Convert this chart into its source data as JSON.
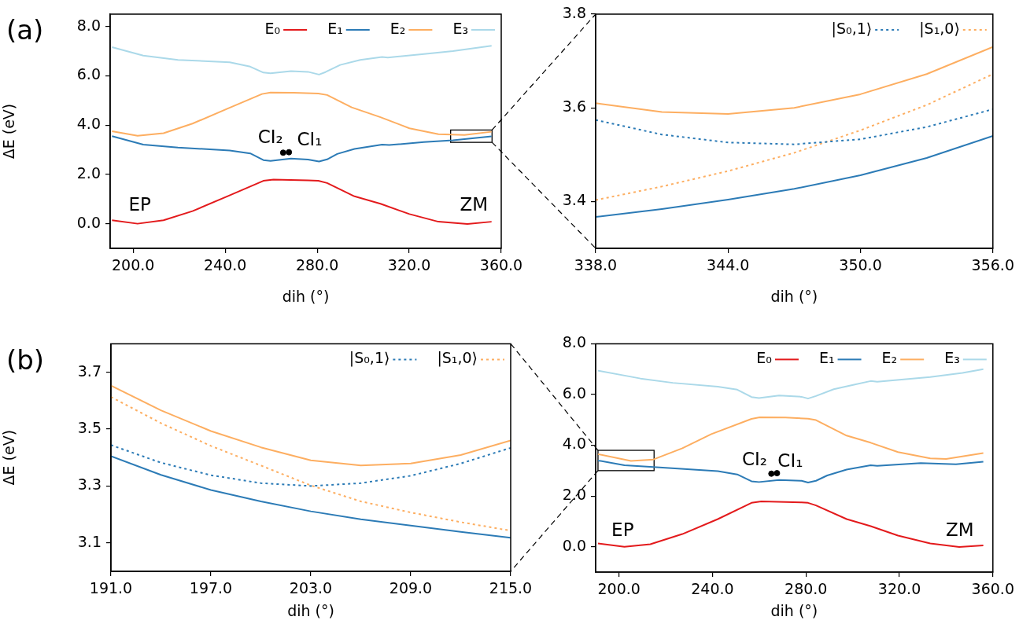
{
  "chart_data": [
    {
      "type": "line",
      "xlabel": "dih (°)",
      "ylabel": "ΔE (eV)",
      "xlim": [
        190,
        360
      ],
      "ylim": [
        -1,
        8.5
      ],
      "xticks": [
        {
          "value": 200,
          "label": "200.0"
        },
        {
          "value": 240,
          "label": "240.0"
        },
        {
          "value": 280,
          "label": "280.0"
        },
        {
          "value": 320,
          "label": "320.0"
        },
        {
          "value": 360,
          "label": "360.0"
        }
      ],
      "yticks": [
        {
          "value": 0,
          "label": "0.0"
        },
        {
          "value": 2,
          "label": "2.0"
        },
        {
          "value": 4,
          "label": "4.0"
        },
        {
          "value": 6,
          "label": "6.0"
        },
        {
          "value": 8,
          "label": "8.0"
        }
      ],
      "legend": "top right",
      "annotations": [
        "(a)",
        "CI₂",
        "CI₁",
        "EP",
        "ZM"
      ],
      "series": [
        {
          "name": "E₀",
          "color": "#e31a1c",
          "x": [
            190.8,
            201.9,
            213.2,
            225.8,
            240.9,
            256.6,
            261,
            276,
            280.5,
            284.3,
            296.2,
            307.5,
            320.1,
            332.7,
            345.3,
            355.8
          ],
          "values": [
            0.14,
            0.0,
            0.14,
            0.51,
            1.11,
            1.74,
            1.79,
            1.76,
            1.74,
            1.65,
            1.11,
            0.81,
            0.39,
            0.08,
            -0.01,
            0.08
          ]
        },
        {
          "name": "E₁",
          "color": "#2c7bb6",
          "x": [
            190.8,
            204.4,
            219.5,
            242,
            250.9,
            256.6,
            259.7,
            268.6,
            276,
            280.8,
            284.3,
            288.7,
            296.2,
            308.2,
            311.3,
            326.4,
            339,
            355.8
          ],
          "values": [
            3.55,
            3.21,
            3.09,
            2.97,
            2.85,
            2.58,
            2.55,
            2.64,
            2.6,
            2.52,
            2.61,
            2.83,
            3.03,
            3.21,
            3.19,
            3.31,
            3.38,
            3.54
          ]
        },
        {
          "name": "E₂",
          "color": "#fdae61",
          "x": [
            190.8,
            201.9,
            213.2,
            225.8,
            240.9,
            256,
            259.7,
            269.8,
            280.5,
            284.3,
            295,
            307.5,
            320.1,
            332.7,
            344,
            355.8
          ],
          "values": [
            3.75,
            3.57,
            3.67,
            4.06,
            4.66,
            5.26,
            5.32,
            5.31,
            5.28,
            5.22,
            4.72,
            4.32,
            3.87,
            3.63,
            3.6,
            3.73
          ]
        },
        {
          "name": "E₃",
          "color": "#abd9e9",
          "x": [
            190.8,
            204.4,
            219.5,
            242,
            250.9,
            256.6,
            259.7,
            268.6,
            276,
            280.8,
            283.6,
            290,
            298.7,
            308.2,
            310.7,
            326.4,
            339,
            355.8
          ],
          "values": [
            7.16,
            6.82,
            6.64,
            6.55,
            6.37,
            6.13,
            6.1,
            6.19,
            6.16,
            6.05,
            6.15,
            6.44,
            6.64,
            6.76,
            6.74,
            6.88,
            7.0,
            7.22
          ]
        },
        {
          "type": "scatter",
          "marker": "circle",
          "color": "#000000",
          "x": [
            265.2,
            267.7
          ],
          "values": [
            2.88,
            2.9
          ]
        }
      ]
    },
    {
      "type": "line",
      "xlabel": "dih (°)",
      "xlim": [
        338,
        356
      ],
      "ylim": [
        3.3,
        3.8
      ],
      "xticks": [
        {
          "value": 338,
          "label": "338.0"
        },
        {
          "value": 344,
          "label": "344.0"
        },
        {
          "value": 350,
          "label": "350.0"
        },
        {
          "value": 356,
          "label": "356.0"
        }
      ],
      "yticks": [
        3.4,
        3.6,
        3.8
      ],
      "legend": "top right",
      "x": [
        338,
        341,
        344,
        347,
        350,
        353,
        356
      ],
      "series": [
        {
          "color": "#fdae61",
          "values": [
            3.61,
            3.591,
            3.587,
            3.6,
            3.629,
            3.672,
            3.73
          ]
        },
        {
          "color": "#2c7bb6",
          "values": [
            3.367,
            3.384,
            3.404,
            3.427,
            3.456,
            3.493,
            3.54
          ]
        },
        {
          "name": "|S₀,1⟩",
          "color": "#2c7bb6",
          "line_style": "dotted",
          "values": [
            3.574,
            3.543,
            3.526,
            3.522,
            3.533,
            3.559,
            3.597
          ]
        },
        {
          "name": "|S₁,0⟩",
          "color": "#fdae61",
          "line_style": "dotted",
          "values": [
            3.403,
            3.432,
            3.465,
            3.504,
            3.552,
            3.606,
            3.672
          ]
        }
      ]
    },
    {
      "type": "line",
      "xlabel": "dih (°)",
      "ylabel": "ΔE (eV)",
      "xlim": [
        191,
        215
      ],
      "ylim": [
        3.0,
        3.8
      ],
      "xticks": [
        {
          "value": 191,
          "label": "191.0"
        },
        {
          "value": 197,
          "label": "197.0"
        },
        {
          "value": 203,
          "label": "203.0"
        },
        {
          "value": 209,
          "label": "209.0"
        },
        {
          "value": 215,
          "label": "215.0"
        }
      ],
      "yticks": [
        3.1,
        3.3,
        3.5,
        3.7
      ],
      "legend": "top right",
      "annotations": [
        "(b)"
      ],
      "x": [
        191,
        194,
        197,
        200,
        203,
        206,
        209,
        212,
        215
      ],
      "series": [
        {
          "color": "#fdae61",
          "values": [
            3.653,
            3.566,
            3.493,
            3.436,
            3.39,
            3.372,
            3.379,
            3.409,
            3.46
          ]
        },
        {
          "color": "#2c7bb6",
          "values": [
            3.405,
            3.339,
            3.286,
            3.246,
            3.211,
            3.183,
            3.161,
            3.139,
            3.118
          ]
        },
        {
          "name": "|S₀,1⟩",
          "color": "#2c7bb6",
          "line_style": "dotted",
          "values": [
            3.444,
            3.382,
            3.338,
            3.31,
            3.3,
            3.31,
            3.336,
            3.379,
            3.434
          ]
        },
        {
          "name": "|S₁,0⟩",
          "color": "#fdae61",
          "line_style": "dotted",
          "values": [
            3.613,
            3.521,
            3.441,
            3.372,
            3.302,
            3.246,
            3.207,
            3.173,
            3.143
          ]
        }
      ]
    },
    {
      "type": "line",
      "xlabel": "dih (°)",
      "xlim": [
        190,
        360
      ],
      "ylim": [
        -1,
        8
      ],
      "xticks": [
        {
          "value": 200,
          "label": "200.0"
        },
        {
          "value": 240,
          "label": "240.0"
        },
        {
          "value": 280,
          "label": "280.0"
        },
        {
          "value": 320,
          "label": "320.0"
        },
        {
          "value": 360,
          "label": "360.0"
        }
      ],
      "yticks": [
        {
          "value": 0,
          "label": "0.0"
        },
        {
          "value": 2,
          "label": "2.0"
        },
        {
          "value": 4,
          "label": "4.0"
        },
        {
          "value": 6,
          "label": "6.0"
        },
        {
          "value": 8,
          "label": "8.0"
        }
      ],
      "legend": "top right",
      "annotations": [
        "CI₂",
        "CI₁",
        "EP",
        "ZM"
      ],
      "series": [
        {
          "name": "E₀",
          "color": "#e31a1c",
          "x": [
            191,
            202.3,
            213.4,
            227.1,
            242.3,
            256.7,
            260.9,
            278.1,
            280.9,
            284.3,
            297.4,
            307.7,
            319.4,
            333.2,
            345.6,
            355.9
          ],
          "values": [
            0.13,
            0.0,
            0.1,
            0.5,
            1.09,
            1.73,
            1.79,
            1.75,
            1.73,
            1.63,
            1.09,
            0.81,
            0.44,
            0.13,
            -0.01,
            0.05
          ]
        },
        {
          "name": "E₁",
          "color": "#2c7bb6",
          "x": [
            191,
            202.3,
            214.7,
            242.3,
            250.6,
            256.7,
            259.9,
            268.5,
            278.1,
            280.9,
            284.3,
            289.1,
            297.4,
            307.7,
            310.5,
            329.1,
            344.2,
            355.9
          ],
          "values": [
            3.4,
            3.21,
            3.14,
            2.98,
            2.85,
            2.58,
            2.55,
            2.63,
            2.6,
            2.53,
            2.6,
            2.81,
            3.04,
            3.21,
            3.19,
            3.3,
            3.25,
            3.35
          ]
        },
        {
          "name": "E₂",
          "color": "#fdae61",
          "x": [
            191,
            205.1,
            214.7,
            227.1,
            239.5,
            256.7,
            260.2,
            271.2,
            280.9,
            284.3,
            297.4,
            307.7,
            319.4,
            333.2,
            340,
            355.9
          ],
          "values": [
            3.65,
            3.38,
            3.44,
            3.88,
            4.44,
            5.04,
            5.1,
            5.09,
            5.05,
            4.99,
            4.38,
            4.1,
            3.73,
            3.48,
            3.46,
            3.69
          ]
        },
        {
          "name": "E₃",
          "color": "#abd9e9",
          "x": [
            191,
            209.2,
            223,
            242.3,
            250.6,
            256.7,
            259.9,
            268.5,
            278.1,
            280.9,
            284.3,
            291.9,
            300.2,
            307.7,
            310.5,
            333.2,
            347,
            355.9
          ],
          "values": [
            6.94,
            6.63,
            6.46,
            6.31,
            6.19,
            5.9,
            5.86,
            5.96,
            5.91,
            5.84,
            5.94,
            6.21,
            6.38,
            6.53,
            6.5,
            6.69,
            6.85,
            7.0
          ]
        },
        {
          "type": "scatter",
          "marker": "circle",
          "color": "#000000",
          "x": [
            265.2,
            267.6
          ],
          "values": [
            2.88,
            2.9
          ]
        }
      ]
    }
  ]
}
